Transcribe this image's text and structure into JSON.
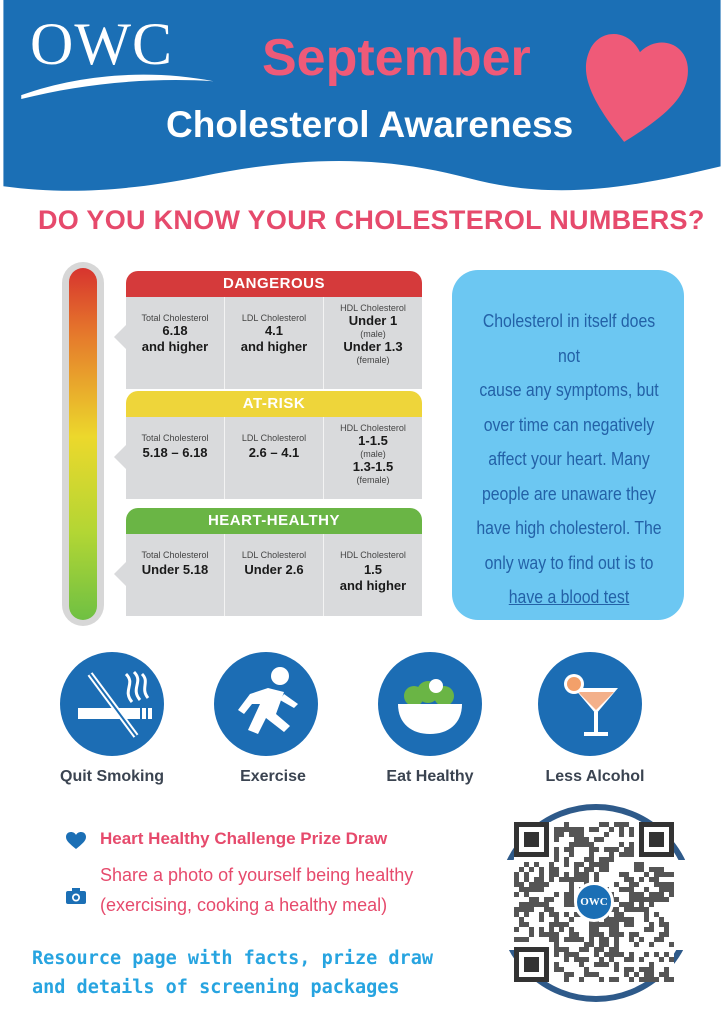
{
  "colors": {
    "header_blue": "#1b6fb5",
    "pink": "#ef5a78",
    "dangerous": "#d53a3b",
    "at_risk": "#eed53a",
    "heart_healthy": "#6ab545",
    "info_bg": "#6cc7f2",
    "info_text": "#2361a7",
    "resource": "#27a4e0"
  },
  "header": {
    "logo": "OWC",
    "month": "September",
    "title": "Cholesterol Awareness"
  },
  "question": "DO YOU KNOW YOUR CHOLESTEROL NUMBERS?",
  "levels": [
    {
      "name": "DANGEROUS",
      "total_label": "Total Cholesterol",
      "total_value": "6.18",
      "total_value2": "and higher",
      "ldl_label": "LDL Cholesterol",
      "ldl_value": "4.1",
      "ldl_value2": "and higher",
      "hdl_label": "HDL Cholesterol",
      "hdl_value": "Under 1",
      "hdl_note": "(male)",
      "hdl_value2": "Under 1.3",
      "hdl_note2": "(female)"
    },
    {
      "name": "AT-RISK",
      "total_label": "Total Cholesterol",
      "total_value": "5.18 – 6.18",
      "ldl_label": "LDL Cholesterol",
      "ldl_value": "2.6 – 4.1",
      "hdl_label": "HDL Cholesterol",
      "hdl_value": "1-1.5",
      "hdl_note": "(male)",
      "hdl_value2": "1.3-1.5",
      "hdl_note2": "(female)"
    },
    {
      "name": "HEART-HEALTHY",
      "total_label": "Total Cholesterol",
      "total_value": "Under 5.18",
      "ldl_label": "LDL Cholesterol",
      "ldl_value": "Under 2.6",
      "hdl_label": "HDL Cholesterol",
      "hdl_value": "1.5",
      "hdl_value2": "and higher"
    }
  ],
  "info": {
    "line1": "Cholesterol in itself does not",
    "line2": "cause any symptoms, but",
    "line3": "over time can negatively",
    "line4": "affect your heart. Many",
    "line5": "people are unaware they",
    "line6": "have high cholesterol. The",
    "line7": "only way to find out is to",
    "link": "have a blood test"
  },
  "tips": [
    {
      "label": "Quit Smoking",
      "icon": "no-smoking-icon"
    },
    {
      "label": "Exercise",
      "icon": "running-person-icon"
    },
    {
      "label": "Eat Healthy",
      "icon": "salad-bowl-icon"
    },
    {
      "label": "Less Alcohol",
      "icon": "cocktail-glass-icon"
    }
  ],
  "challenge": {
    "title": "Heart Healthy Challenge Prize Draw",
    "line1": "Share a photo of yourself being healthy",
    "line2": "(exercising, cooking a healthy meal)"
  },
  "resource": {
    "line1": "Resource page with facts, prize draw",
    "line2": "and details of screening packages"
  },
  "qr": {
    "center_text": "OWC"
  }
}
